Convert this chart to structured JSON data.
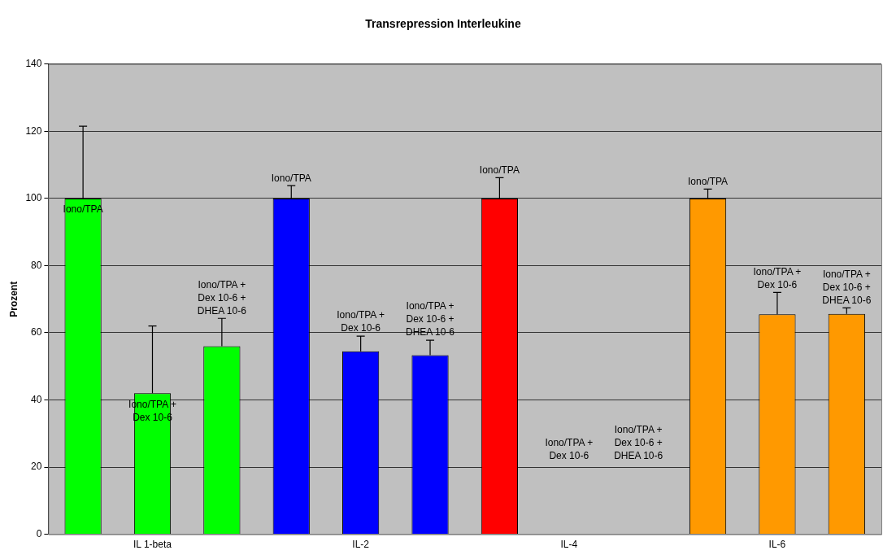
{
  "chart_data": {
    "type": "bar",
    "title": "Transrepression Interleukine",
    "ylabel": "Prozent",
    "categories": [
      null,
      "IL 1-beta",
      null,
      null,
      "IL-2",
      null,
      null,
      "IL-4",
      null,
      null,
      "IL-6",
      null
    ],
    "values": [
      100,
      42,
      56,
      100,
      54.5,
      53.3,
      100,
      null,
      null,
      100,
      65.5,
      65.6
    ],
    "colors": [
      "#00ff00",
      "#00ff00",
      "#00ff00",
      "#0000ff",
      "#0000ff",
      "#0000ff",
      "#ff0000",
      "#ff0000",
      "#ff0000",
      "#ff9900",
      "#ff9900",
      "#ff9900"
    ],
    "errors": [
      [
        100,
        121.5
      ],
      [
        42,
        62
      ],
      [
        56,
        64.3
      ],
      [
        100,
        103.8
      ],
      [
        54.5,
        59
      ],
      [
        53.3,
        57.8
      ],
      [
        100,
        106.2
      ],
      null,
      null,
      [
        100,
        102.8
      ],
      [
        65.5,
        72
      ],
      [
        65.6,
        67.4
      ]
    ],
    "value_labels": [
      "Iono/TPA",
      "Iono/TPA +\nDex 10-6",
      "Iono/TPA +\nDex 10-6 +\nDHEA 10-6",
      "Iono/TPA",
      "Iono/TPA +\nDex 10-6",
      "Iono/TPA +\nDex 10-6 +\nDHEA 10-6",
      "Iono/TPA",
      "Iono/TPA +\nDex 10-6",
      "Iono/TPA +\nDex 10-6 +\nDHEA 10-6",
      "Iono/TPA",
      "Iono/TPA +\nDex 10-6",
      "Iono/TPA +\nDex 10-6 +\nDHEA 10-6"
    ],
    "ylim": [
      0,
      140
    ],
    "yticks": [
      0,
      20,
      40,
      60,
      80,
      100,
      120,
      140
    ],
    "grid": "y",
    "legend": false
  }
}
